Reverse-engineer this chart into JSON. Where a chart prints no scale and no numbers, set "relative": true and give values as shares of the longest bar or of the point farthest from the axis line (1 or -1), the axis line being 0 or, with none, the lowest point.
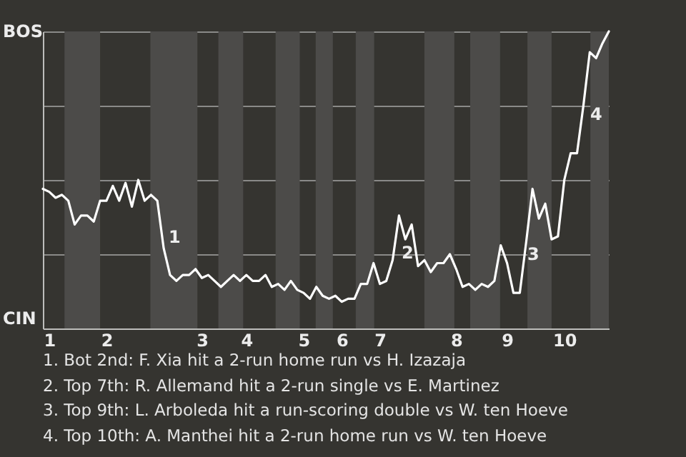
{
  "chart_data": {
    "type": "line",
    "categories": [
      null,
      "1",
      null,
      null,
      null,
      null,
      null,
      null,
      null,
      null,
      "2",
      null,
      null,
      null,
      null,
      null,
      null,
      null,
      null,
      null,
      null,
      null,
      null,
      null,
      null,
      "3",
      null,
      null,
      null,
      null,
      null,
      null,
      "4",
      null,
      null,
      null,
      null,
      null,
      null,
      null,
      null,
      "5",
      null,
      null,
      null,
      null,
      null,
      "6",
      null,
      null,
      null,
      null,
      null,
      "7",
      null,
      null,
      null,
      null,
      null,
      null,
      null,
      null,
      null,
      null,
      null,
      "8",
      null,
      null,
      null,
      null,
      null,
      null,
      null,
      "9",
      null,
      null,
      null,
      null,
      null,
      null,
      null,
      null,
      "10",
      null,
      null,
      null,
      null,
      null,
      null,
      null
    ],
    "series": [
      {
        "color": "#ffffff",
        "values": [
          0.47,
          0.46,
          0.44,
          0.45,
          0.43,
          0.35,
          0.38,
          0.38,
          0.36,
          0.43,
          0.43,
          0.48,
          0.43,
          0.49,
          0.41,
          0.5,
          0.43,
          0.45,
          0.43,
          0.27,
          0.18,
          0.16,
          0.18,
          0.18,
          0.2,
          0.17,
          0.18,
          0.16,
          0.14,
          0.16,
          0.18,
          0.16,
          0.18,
          0.16,
          0.16,
          0.18,
          0.14,
          0.15,
          0.13,
          0.16,
          0.13,
          0.12,
          0.1,
          0.14,
          0.11,
          0.1,
          0.11,
          0.09,
          0.1,
          0.1,
          0.15,
          0.15,
          0.22,
          0.15,
          0.16,
          0.23,
          0.38,
          0.3,
          0.35,
          0.21,
          0.23,
          0.19,
          0.22,
          0.22,
          0.25,
          0.2,
          0.14,
          0.15,
          0.13,
          0.15,
          0.14,
          0.16,
          0.28,
          0.22,
          0.12,
          0.12,
          0.29,
          0.47,
          0.37,
          0.42,
          0.3,
          0.31,
          0.5,
          0.59,
          0.59,
          0.75,
          0.93,
          0.91,
          0.96,
          1.0
        ],
        "name": null
      }
    ],
    "relative": true,
    "grid": "y",
    "line_style": "solid",
    "annotations": [
      "BOS",
      "CIN",
      "1",
      "2",
      "3",
      "4",
      "1. Bot 2nd: F. Xia hit a 2-run home run vs H. Izazaja",
      "2. Top 7th: R. Allemand hit a 2-run single vs E. Martinez",
      "3. Top 9th: L. Arboleda hit a run-scoring double vs W. ten Hoeve",
      "4. Top 10th: A. Manthei hit a 2-run home run vs W. ten Hoeve"
    ]
  }
}
